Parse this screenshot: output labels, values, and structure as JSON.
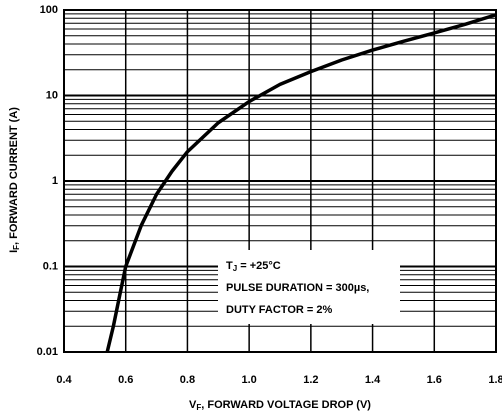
{
  "chart_data": {
    "type": "line",
    "x_label": {
      "symbol": "V",
      "subscript": "F",
      "text": ", FORWARD VOLTAGE DROP (V)"
    },
    "y_label": {
      "symbol": "I",
      "subscript": "F",
      "text": ", FORWARD CURRENT (A)"
    },
    "annotation": {
      "line1": {
        "symbol": "T",
        "subscript": "J",
        "text": " = +25°C"
      },
      "line2": "PULSE DURATION = 300µs,",
      "line3": "DUTY FACTOR = 2%"
    },
    "x": [
      0.54,
      0.56,
      0.58,
      0.6,
      0.65,
      0.7,
      0.75,
      0.8,
      0.9,
      1.0,
      1.1,
      1.2,
      1.3,
      1.4,
      1.5,
      1.6,
      1.7,
      1.8
    ],
    "series": [
      {
        "color": "#000000",
        "values": [
          0.01,
          0.02,
          0.045,
          0.1,
          0.3,
          0.7,
          1.3,
          2.2,
          4.8,
          8.5,
          13.5,
          19,
          26,
          34,
          43,
          54,
          68,
          88
        ]
      }
    ],
    "xlim": [
      0.4,
      1.8
    ],
    "xticks": [
      0.4,
      0.6,
      0.8,
      {
        "value": 1.0,
        "label": "1.0"
      },
      1.2,
      1.4,
      1.6,
      1.8
    ],
    "ylim": [
      0.01,
      100
    ],
    "yticks": [
      0.01,
      0.1,
      1,
      10,
      100
    ],
    "y_log": true,
    "grid": true
  }
}
